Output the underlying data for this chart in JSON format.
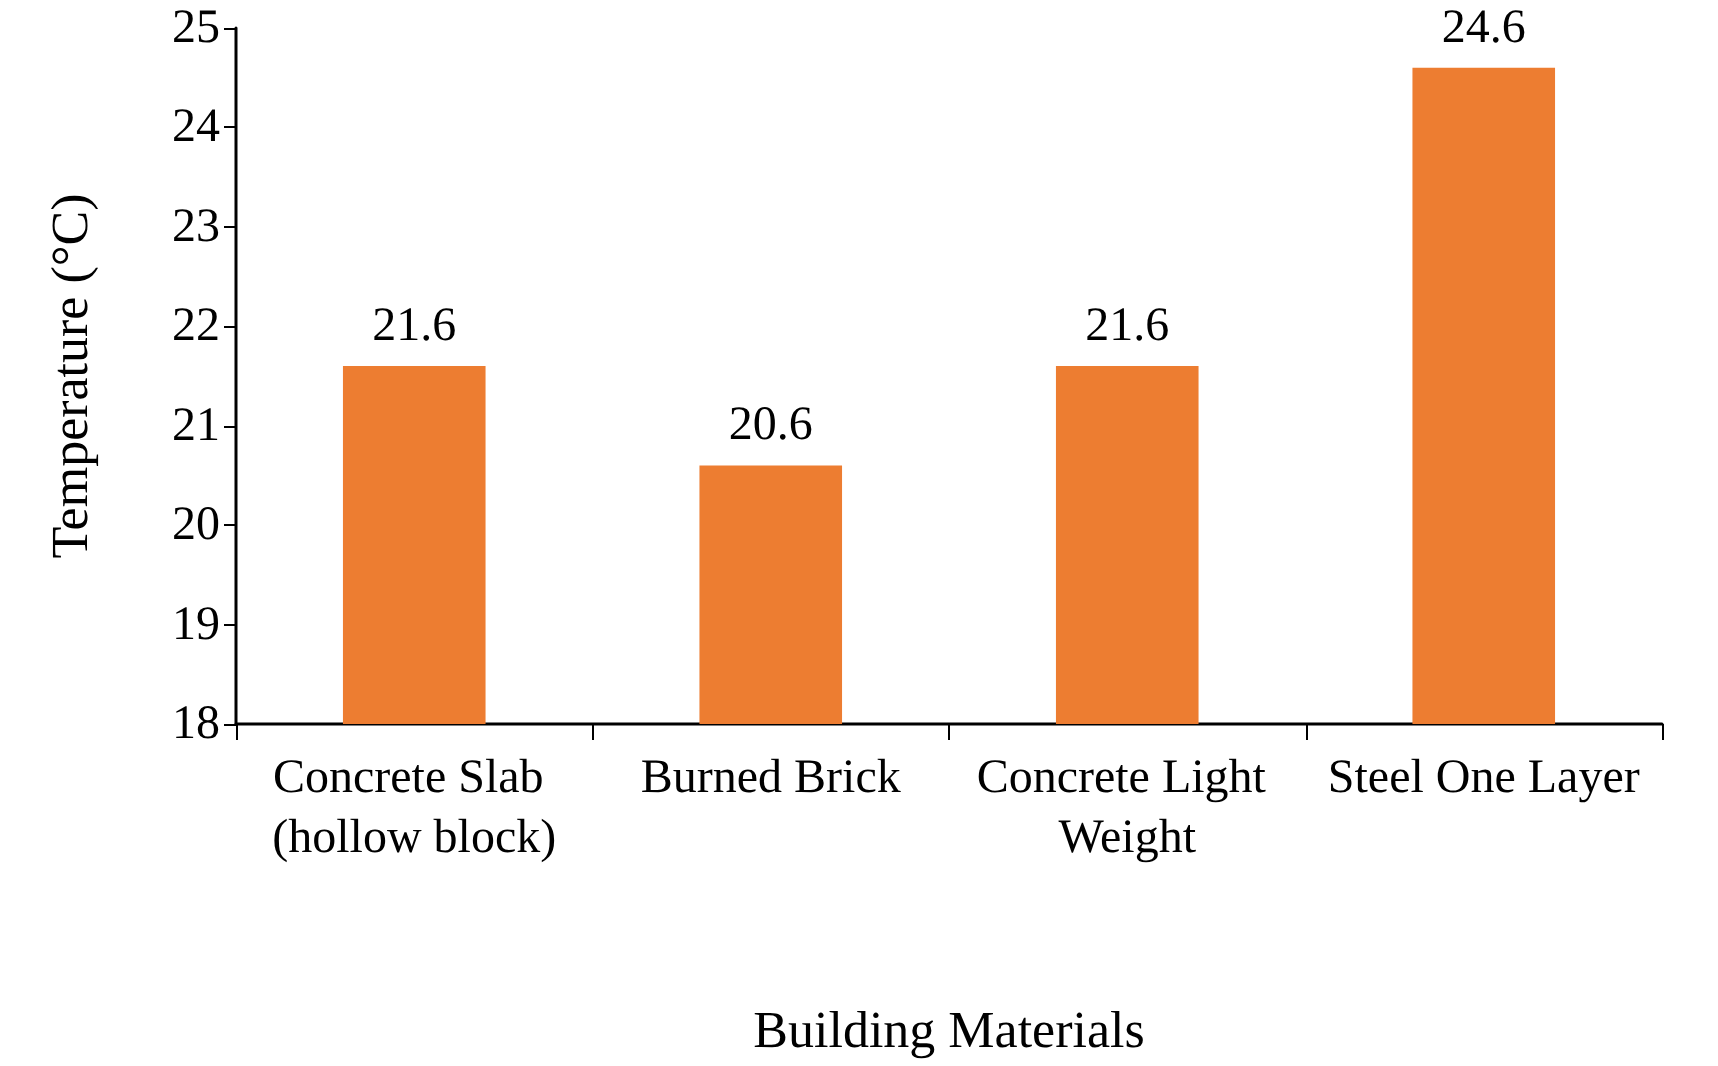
{
  "chart_data": {
    "type": "bar",
    "xlabel": "Building Materials",
    "ylabel": "Temperature (°C)",
    "categories": [
      "Concrete Slab (hollow block)",
      "Burned Brick",
      "Concrete Light Weight",
      "Steel One Layer"
    ],
    "values": [
      21.6,
      20.6,
      21.6,
      24.6
    ],
    "color": "#ed7d31",
    "ylim": [
      18,
      25
    ],
    "yticks": [
      18,
      19,
      20,
      21,
      22,
      23,
      24,
      25
    ],
    "grid": false,
    "data_labels": true
  }
}
